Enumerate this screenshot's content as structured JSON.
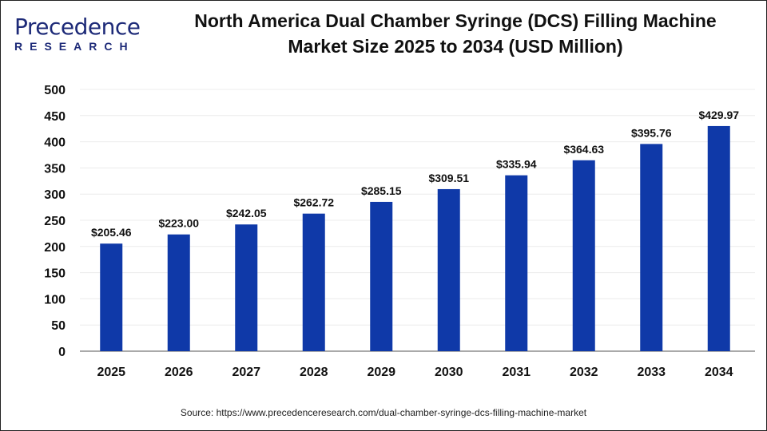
{
  "logo": {
    "line1": "Precedence",
    "line2": "RESEARCH"
  },
  "chart_data": {
    "type": "bar",
    "title": "North America Dual Chamber Syringe (DCS) Filling Machine Market Size 2025 to 2034 (USD Million)",
    "title_lines": [
      "North America Dual Chamber Syringe (DCS) Filling Machine",
      "Market Size 2025 to 2034 (USD Million)"
    ],
    "categories": [
      "2025",
      "2026",
      "2027",
      "2028",
      "2029",
      "2030",
      "2031",
      "2032",
      "2033",
      "2034"
    ],
    "values": [
      205.46,
      223.0,
      242.05,
      262.72,
      285.15,
      309.51,
      335.94,
      364.63,
      395.76,
      429.97
    ],
    "data_labels": [
      "$205.46",
      "$223.00",
      "$242.05",
      "$262.72",
      "$285.15",
      "$309.51",
      "$335.94",
      "$364.63",
      "$395.76",
      "$429.97"
    ],
    "yticks": [
      0,
      50,
      100,
      150,
      200,
      250,
      300,
      350,
      400,
      450,
      500
    ],
    "ylim": [
      0,
      500
    ],
    "xlabel": "",
    "ylabel": "",
    "grid": true,
    "bar_color": "#0f39a8"
  },
  "source": "Source: https://www.precedenceresearch.com/dual-chamber-syringe-dcs-filling-machine-market"
}
